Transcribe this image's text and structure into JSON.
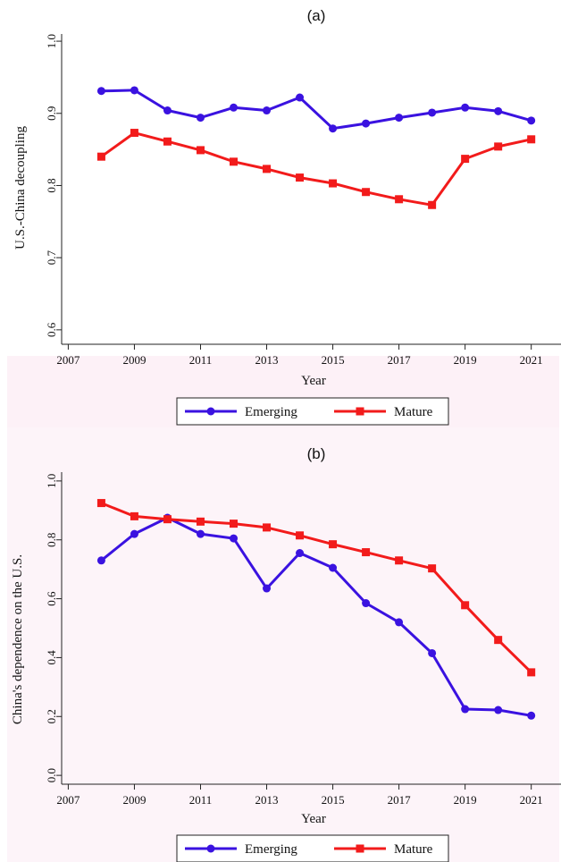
{
  "chart_data": [
    {
      "type": "line",
      "title": "(a)",
      "xlabel": "Year",
      "ylabel": "U.S.-China decoupling",
      "xlim": [
        2006.8,
        2021.9
      ],
      "ylim": [
        0.58,
        1.01
      ],
      "xticks": [
        "2007",
        "2009",
        "2011",
        "2013",
        "2015",
        "2017",
        "2019",
        "2021"
      ],
      "yticks": [
        "0.6",
        "0.7",
        "0.8",
        "0.9",
        "1.0"
      ],
      "grid": false,
      "legend_position": "bottom",
      "x": [
        2008,
        2009,
        2010,
        2011,
        2012,
        2013,
        2014,
        2015,
        2016,
        2017,
        2018,
        2019,
        2020,
        2021
      ],
      "series": [
        {
          "name": "Emerging",
          "color": "#3a12e0",
          "marker": "circle",
          "values": [
            0.931,
            0.932,
            0.904,
            0.894,
            0.908,
            0.904,
            0.922,
            0.879,
            0.886,
            0.894,
            0.901,
            0.908,
            0.903,
            0.89
          ]
        },
        {
          "name": "Mature",
          "color": "#f21b1b",
          "marker": "square",
          "values": [
            0.84,
            0.873,
            0.861,
            0.849,
            0.833,
            0.823,
            0.811,
            0.803,
            0.791,
            0.781,
            0.773,
            0.837,
            0.854,
            0.864
          ]
        }
      ]
    },
    {
      "type": "line",
      "title": "(b)",
      "xlabel": "Year",
      "ylabel": "China's dependence on the U.S.",
      "xlim": [
        2006.8,
        2021.9
      ],
      "ylim": [
        -0.03,
        1.03
      ],
      "xticks": [
        "2007",
        "2009",
        "2011",
        "2013",
        "2015",
        "2017",
        "2019",
        "2021"
      ],
      "yticks": [
        "0.0",
        "0.2",
        "0.4",
        "0.6",
        "0.8",
        "1.0"
      ],
      "grid": false,
      "legend_position": "bottom",
      "x": [
        2008,
        2009,
        2010,
        2011,
        2012,
        2013,
        2014,
        2015,
        2016,
        2017,
        2018,
        2019,
        2020,
        2021
      ],
      "series": [
        {
          "name": "Emerging",
          "color": "#3a12e0",
          "marker": "circle",
          "values": [
            0.73,
            0.82,
            0.875,
            0.82,
            0.805,
            0.635,
            0.755,
            0.705,
            0.585,
            0.52,
            0.415,
            0.225,
            0.222,
            0.203
          ]
        },
        {
          "name": "Mature",
          "color": "#f21b1b",
          "marker": "square",
          "values": [
            0.925,
            0.88,
            0.87,
            0.862,
            0.855,
            0.842,
            0.815,
            0.785,
            0.758,
            0.73,
            0.703,
            0.578,
            0.46,
            0.35
          ]
        }
      ]
    }
  ]
}
